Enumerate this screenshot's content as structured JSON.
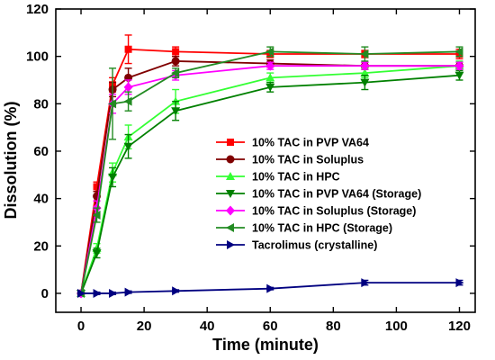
{
  "chart_data": {
    "type": "line",
    "xlabel": "Time (minute)",
    "ylabel": "Dissolution (%)",
    "xlim": [
      -8,
      125
    ],
    "ylim": [
      -8,
      120
    ],
    "xticks": [
      0,
      20,
      40,
      60,
      80,
      100,
      120
    ],
    "yticks": [
      0,
      20,
      40,
      60,
      80,
      100,
      120
    ],
    "x": [
      0,
      5,
      10,
      15,
      30,
      60,
      90,
      120
    ],
    "legend_position": "center",
    "series": [
      {
        "name": "10% TAC in PVP VA64",
        "color": "#ff0000",
        "marker": "square",
        "values": [
          0,
          45,
          88,
          103,
          102,
          101,
          101,
          101
        ],
        "errors": [
          0,
          2,
          3,
          6,
          2,
          1.5,
          1.5,
          2
        ]
      },
      {
        "name": "10% TAC in Soluplus",
        "color": "#800000",
        "marker": "circle",
        "values": [
          0,
          41,
          86,
          91,
          98,
          97,
          96,
          96
        ],
        "errors": [
          0,
          2,
          3,
          4,
          2,
          1.5,
          1.5,
          1.5
        ]
      },
      {
        "name": "10% TAC in HPC",
        "color": "#33ff33",
        "marker": "triangle-up",
        "values": [
          0,
          19,
          51,
          66,
          81,
          91,
          93,
          96
        ],
        "errors": [
          0,
          2,
          4,
          5,
          5,
          2,
          2,
          2
        ]
      },
      {
        "name": "10% TAC in PVP VA64 (Storage)",
        "color": "#008000",
        "marker": "triangle-down",
        "values": [
          0,
          17,
          49,
          62,
          77,
          87,
          89,
          92
        ],
        "errors": [
          0,
          2,
          4,
          5,
          4,
          2,
          3,
          2
        ]
      },
      {
        "name": "10% TAC in Soluplus (Storage)",
        "color": "#ff00ff",
        "marker": "diamond",
        "values": [
          0,
          36,
          80,
          87,
          92,
          96,
          96,
          96
        ],
        "errors": [
          0,
          3,
          4,
          3,
          2,
          1.5,
          1.5,
          1.5
        ]
      },
      {
        "name": "10% TAC in HPC (Storage)",
        "color": "#228B22",
        "marker": "triangle-left",
        "values": [
          0,
          33,
          80,
          81,
          93,
          102,
          101,
          102
        ],
        "errors": [
          0,
          3,
          15,
          4,
          2,
          2,
          3,
          2
        ]
      },
      {
        "name": "Tacrolimus (crystalline)",
        "color": "#000080",
        "marker": "triangle-right",
        "values": [
          0,
          0,
          0,
          0.5,
          1,
          2,
          4.5,
          4.5
        ],
        "errors": [
          0,
          0.5,
          0.5,
          0.5,
          0.5,
          0.5,
          1,
          1
        ]
      }
    ]
  }
}
